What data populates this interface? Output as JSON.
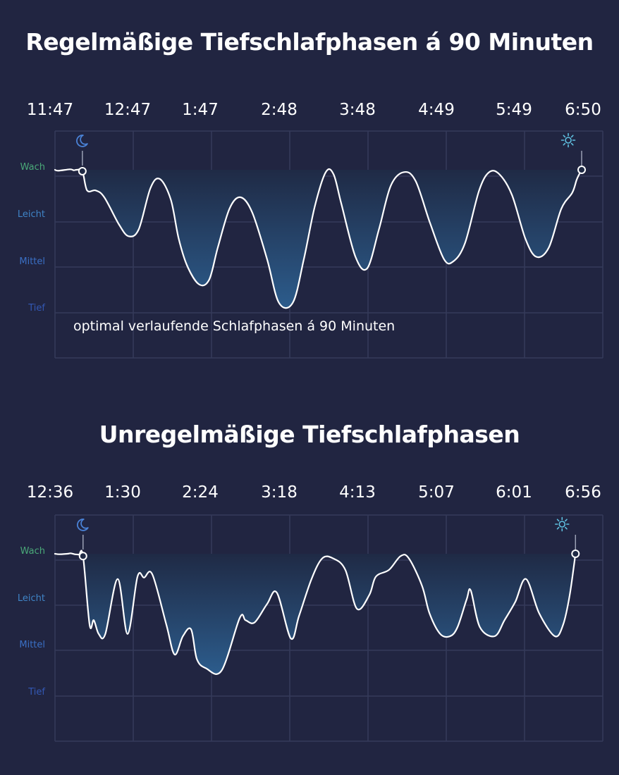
{
  "chart_data": [
    {
      "type": "area",
      "title": "Regelmäßige Tiefschlafphasen á 90 Minuten",
      "x_ticks": [
        "11:47",
        "12:47",
        "1:47",
        "2:48",
        "3:48",
        "4:49",
        "5:49",
        "6:50"
      ],
      "y_categories": [
        "Wach",
        "Leicht",
        "Mittel",
        "Tief"
      ],
      "y_category_colors": [
        "#4aa878",
        "#3f84c6",
        "#3a6fc4",
        "#3358b4"
      ],
      "ylim": [
        0,
        3
      ],
      "grid": true,
      "annotation": "optimal verlaufende Schlafphasen á 90 Minuten",
      "icons": [
        "moon-icon",
        "sun-icon"
      ],
      "colors": {
        "line": "#ffffff",
        "fill_top": "#1f2a45",
        "fill_bottom": "#2c5c8c",
        "grid": "#353b5a"
      },
      "series": [
        {
          "x": [
            0,
            0.04,
            0.19,
            0.24,
            0.28,
            0.35,
            0.41,
            0.52,
            0.63,
            0.82,
            0.94,
            1.07,
            1.22,
            1.34,
            1.48,
            1.58,
            1.69,
            1.84,
            1.97,
            2.08,
            2.23,
            2.37,
            2.52,
            2.71,
            2.86,
            3.04,
            3.18,
            3.32,
            3.46,
            3.56,
            3.66,
            3.84,
            3.99,
            4.14,
            4.29,
            4.46,
            4.61,
            4.79,
            4.97,
            5.09,
            5.24,
            5.42,
            5.55,
            5.68,
            5.84,
            6.01,
            6.15,
            6.31,
            6.47,
            6.61,
            6.67,
            6.73
          ],
          "y": [
            0,
            0.02,
            -0.01,
            0.01,
            0,
            0.03,
            0.45,
            0.45,
            0.6,
            1.2,
            1.45,
            1.3,
            0.4,
            0.2,
            0.65,
            1.5,
            2.1,
            2.5,
            2.4,
            1.7,
            0.85,
            0.6,
            0.93,
            1.95,
            2.9,
            2.9,
            1.95,
            0.8,
            0.05,
            0.1,
            0.75,
            1.9,
            2.15,
            1.3,
            0.35,
            0.05,
            0.25,
            1.15,
            1.95,
            2.0,
            1.6,
            0.45,
            0.05,
            0.1,
            0.55,
            1.5,
            1.9,
            1.7,
            0.85,
            0.5,
            0.2,
            0
          ]
        }
      ]
    },
    {
      "type": "area",
      "title": "Unregelmäßige Tiefschlafphasen",
      "x_ticks": [
        "12:36",
        "1:30",
        "2:24",
        "3:18",
        "4:13",
        "5:07",
        "6:01",
        "6:56"
      ],
      "y_categories": [
        "Wach",
        "Leicht",
        "Mittel",
        "Tief"
      ],
      "y_category_colors": [
        "#4aa878",
        "#3f84c6",
        "#3a6fc4",
        "#3358b4"
      ],
      "ylim": [
        0,
        3
      ],
      "grid": true,
      "icons": [
        "moon-icon",
        "sun-icon"
      ],
      "colors": {
        "line": "#ffffff",
        "fill_top": "#1f2a45",
        "fill_bottom": "#2c5c8c",
        "grid": "#353b5a"
      },
      "series": [
        {
          "x": [
            0,
            0.05,
            0.15,
            0.19,
            0.24,
            0.29,
            0.34,
            0.42,
            0.47,
            0.53,
            0.61,
            0.76,
            0.88,
            1.0,
            1.08,
            1.18,
            1.35,
            1.45,
            1.55,
            1.65,
            1.72,
            1.83,
            2.02,
            2.24,
            2.31,
            2.42,
            2.57,
            2.69,
            2.86,
            2.96,
            3.11,
            3.24,
            3.37,
            3.52,
            3.66,
            3.81,
            3.89,
            4.05,
            4.19,
            4.29,
            4.45,
            4.54,
            4.67,
            4.79,
            4.88,
            4.99,
            5.04,
            5.15,
            5.33,
            5.45,
            5.58,
            5.71,
            5.87,
            6.06,
            6.16,
            6.24,
            6.31
          ],
          "y": [
            0,
            0.01,
            0,
            -0.01,
            0.01,
            0.02,
            0.05,
            1.55,
            1.45,
            1.75,
            1.75,
            0.55,
            1.75,
            0.5,
            0.52,
            0.45,
            1.55,
            2.2,
            1.8,
            1.65,
            2.3,
            2.5,
            2.55,
            1.4,
            1.45,
            1.5,
            1.1,
            0.85,
            1.85,
            1.35,
            0.55,
            0.1,
            0.1,
            0.35,
            1.2,
            0.9,
            0.5,
            0.35,
            0.05,
            0.1,
            0.7,
            1.3,
            1.75,
            1.8,
            1.6,
            1.0,
            0.8,
            1.6,
            1.8,
            1.45,
            1.05,
            0.55,
            1.3,
            1.8,
            1.55,
            0.9,
            0
          ]
        }
      ]
    }
  ]
}
